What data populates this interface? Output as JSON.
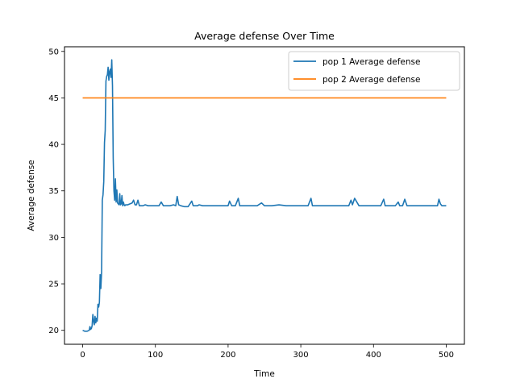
{
  "chart_data": {
    "type": "line",
    "title": "Average defense Over Time",
    "xlabel": "Time",
    "ylabel": "Average defense",
    "xlim": [
      -25,
      525
    ],
    "ylim": [
      18.5,
      50.5
    ],
    "xticks": [
      0,
      100,
      200,
      300,
      400,
      500
    ],
    "yticks": [
      20,
      25,
      30,
      35,
      40,
      45,
      50
    ],
    "grid": false,
    "legend_position": "top-right",
    "series": [
      {
        "name": "pop 1 Average defense",
        "color": "#1f77b4",
        "x": [
          0,
          3,
          6,
          9,
          10,
          11,
          12,
          13,
          14,
          15,
          16,
          17,
          18,
          19,
          20,
          21,
          22,
          23,
          24,
          25,
          26,
          27,
          28,
          29,
          30,
          31,
          32,
          33,
          34,
          35,
          36,
          37,
          38,
          39,
          40,
          41,
          42,
          43,
          44,
          45,
          46,
          47,
          48,
          49,
          50,
          51,
          52,
          53,
          54,
          55,
          56,
          57,
          58,
          59,
          60,
          62,
          65,
          68,
          70,
          72,
          74,
          76,
          78,
          80,
          83,
          86,
          90,
          95,
          100,
          105,
          108,
          111,
          115,
          120,
          125,
          128,
          130,
          132,
          135,
          140,
          145,
          150,
          152,
          155,
          158,
          160,
          165,
          170,
          180,
          190,
          200,
          202,
          205,
          210,
          214,
          216,
          220,
          230,
          240,
          246,
          250,
          260,
          270,
          280,
          290,
          300,
          310,
          314,
          316,
          320,
          330,
          340,
          350,
          360,
          366,
          369,
          371,
          374,
          380,
          390,
          400,
          410,
          414,
          416,
          420,
          430,
          434,
          436,
          440,
          443,
          446,
          448,
          450,
          460,
          470,
          480,
          488,
          490,
          492,
          494,
          500
        ],
        "y": [
          20.0,
          19.9,
          19.9,
          20.0,
          20.4,
          20.1,
          20.2,
          20.5,
          21.7,
          21.0,
          20.6,
          21.5,
          20.8,
          21.3,
          21.0,
          22.8,
          22.5,
          23.0,
          26.0,
          24.5,
          26.2,
          34.0,
          34.6,
          36.0,
          40.2,
          41.5,
          46.8,
          47.3,
          47.5,
          48.3,
          46.9,
          47.8,
          48.1,
          47.2,
          49.1,
          46.3,
          38.5,
          35.0,
          34.0,
          36.3,
          33.8,
          35.1,
          33.7,
          33.6,
          33.5,
          34.7,
          33.5,
          33.6,
          34.5,
          33.4,
          33.8,
          33.5,
          33.4,
          33.5,
          33.5,
          33.5,
          33.6,
          33.7,
          34.0,
          33.5,
          33.5,
          34.0,
          33.4,
          33.4,
          33.4,
          33.5,
          33.4,
          33.4,
          33.4,
          33.4,
          33.8,
          33.4,
          33.4,
          33.4,
          33.5,
          33.4,
          34.4,
          33.5,
          33.4,
          33.3,
          33.3,
          33.9,
          33.4,
          33.4,
          33.4,
          33.5,
          33.4,
          33.4,
          33.4,
          33.4,
          33.4,
          33.9,
          33.4,
          33.4,
          34.2,
          33.4,
          33.4,
          33.4,
          33.4,
          33.7,
          33.4,
          33.4,
          33.5,
          33.4,
          33.4,
          33.4,
          33.4,
          34.2,
          33.4,
          33.4,
          33.4,
          33.4,
          33.4,
          33.4,
          33.4,
          34.0,
          33.5,
          34.2,
          33.4,
          33.4,
          33.4,
          33.4,
          34.1,
          33.4,
          33.4,
          33.4,
          33.8,
          33.4,
          33.4,
          34.1,
          33.4,
          33.4,
          33.4,
          33.4,
          33.4,
          33.4,
          33.4,
          34.1,
          33.6,
          33.4,
          33.4
        ]
      },
      {
        "name": "pop 2 Average defense",
        "color": "#ff7f0e",
        "x": [
          0,
          500
        ],
        "y": [
          45,
          45
        ]
      }
    ]
  }
}
